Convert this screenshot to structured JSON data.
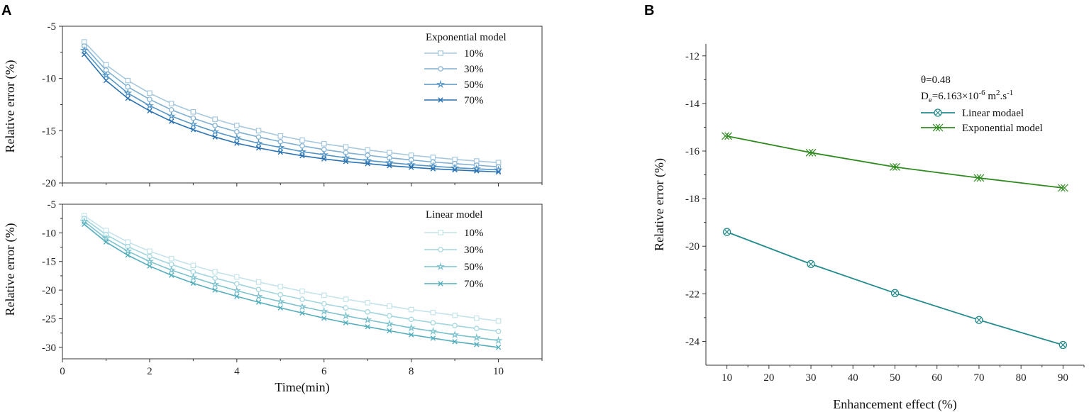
{
  "panel_labels": {
    "a": "A",
    "b": "B"
  },
  "colors": {
    "exp": [
      "#a6c8de",
      "#7fb0d4",
      "#5596c6",
      "#2a72b2"
    ],
    "lin": [
      "#c5e4ea",
      "#a1d5de",
      "#7cc2ce",
      "#55aebd"
    ],
    "b_linear": "#238b8b",
    "b_exp": "#2f8a1f"
  },
  "chart_data": [
    {
      "id": "A-top",
      "type": "line",
      "title": "",
      "xlabel": "",
      "ylabel": "Relative error (%)",
      "xlim": [
        0,
        11
      ],
      "ylim": [
        -20,
        -5
      ],
      "xticks": [
        0,
        2,
        4,
        6,
        8,
        10
      ],
      "yticks": [
        -20,
        -15,
        -10,
        -5
      ],
      "ytick_labels": [
        "-20",
        "-15",
        "-10",
        "-5"
      ],
      "legend_title": "Exponential model",
      "x": [
        0.5,
        1,
        1.5,
        2,
        2.5,
        3,
        3.5,
        4,
        4.5,
        5,
        5.5,
        6,
        6.5,
        7,
        7.5,
        8,
        8.5,
        9,
        9.5,
        10
      ],
      "series": [
        {
          "name": "10%",
          "marker": "square",
          "values": [
            -6.5,
            -8.7,
            -10.2,
            -11.4,
            -12.4,
            -13.2,
            -13.9,
            -14.5,
            -15.0,
            -15.5,
            -15.9,
            -16.25,
            -16.55,
            -16.85,
            -17.1,
            -17.35,
            -17.55,
            -17.75,
            -17.9,
            -18.05
          ]
        },
        {
          "name": "30%",
          "marker": "circle",
          "values": [
            -6.9,
            -9.2,
            -10.8,
            -12.0,
            -13.0,
            -13.8,
            -14.5,
            -15.1,
            -15.6,
            -16.05,
            -16.45,
            -16.8,
            -17.1,
            -17.35,
            -17.6,
            -17.8,
            -18.0,
            -18.15,
            -18.3,
            -18.45
          ]
        },
        {
          "name": "50%",
          "marker": "star",
          "values": [
            -7.3,
            -9.7,
            -11.4,
            -12.6,
            -13.6,
            -14.4,
            -15.1,
            -15.7,
            -16.2,
            -16.6,
            -17.0,
            -17.3,
            -17.6,
            -17.85,
            -18.05,
            -18.25,
            -18.4,
            -18.55,
            -18.65,
            -18.75
          ]
        },
        {
          "name": "70%",
          "marker": "x",
          "values": [
            -7.7,
            -10.2,
            -11.9,
            -13.1,
            -14.1,
            -14.9,
            -15.6,
            -16.2,
            -16.65,
            -17.05,
            -17.4,
            -17.7,
            -17.95,
            -18.15,
            -18.35,
            -18.5,
            -18.65,
            -18.75,
            -18.85,
            -18.95
          ]
        }
      ]
    },
    {
      "id": "A-bottom",
      "type": "line",
      "title": "",
      "xlabel": "Time(min)",
      "ylabel": "Relative error (%)",
      "xlim": [
        0,
        11
      ],
      "ylim": [
        -32,
        -5
      ],
      "xticks": [
        0,
        2,
        4,
        6,
        8,
        10
      ],
      "xtick_labels": [
        "0",
        "2",
        "4",
        "6",
        "8",
        "10"
      ],
      "yticks": [
        -30,
        -25,
        -20,
        -15,
        -10,
        -5
      ],
      "ytick_labels": [
        "-30",
        "-25",
        "-20",
        "-15",
        "-10",
        "-5"
      ],
      "legend_title": "Linear model",
      "x": [
        0.5,
        1,
        1.5,
        2,
        2.5,
        3,
        3.5,
        4,
        4.5,
        5,
        5.5,
        6,
        6.5,
        7,
        7.5,
        8,
        8.5,
        9,
        9.5,
        10
      ],
      "series": [
        {
          "name": "10%",
          "marker": "square",
          "values": [
            -7.0,
            -9.6,
            -11.6,
            -13.2,
            -14.5,
            -15.7,
            -16.8,
            -17.7,
            -18.6,
            -19.4,
            -20.2,
            -20.9,
            -21.6,
            -22.2,
            -22.8,
            -23.4,
            -23.9,
            -24.4,
            -24.9,
            -25.4
          ]
        },
        {
          "name": "30%",
          "marker": "circle",
          "values": [
            -7.5,
            -10.3,
            -12.4,
            -14.1,
            -15.5,
            -16.8,
            -17.9,
            -18.9,
            -19.9,
            -20.8,
            -21.6,
            -22.4,
            -23.1,
            -23.8,
            -24.5,
            -25.1,
            -25.7,
            -26.2,
            -26.7,
            -27.2
          ]
        },
        {
          "name": "50%",
          "marker": "star",
          "values": [
            -8.0,
            -11.0,
            -13.2,
            -15.0,
            -16.5,
            -17.8,
            -19.0,
            -20.1,
            -21.1,
            -22.0,
            -22.9,
            -23.7,
            -24.5,
            -25.2,
            -25.9,
            -26.6,
            -27.2,
            -27.8,
            -28.3,
            -28.8
          ]
        },
        {
          "name": "70%",
          "marker": "x",
          "values": [
            -8.5,
            -11.6,
            -13.9,
            -15.8,
            -17.4,
            -18.8,
            -20.0,
            -21.1,
            -22.1,
            -23.1,
            -24.0,
            -24.9,
            -25.7,
            -26.4,
            -27.1,
            -27.8,
            -28.4,
            -29.0,
            -29.5,
            -30.0
          ]
        }
      ]
    },
    {
      "id": "B",
      "type": "line",
      "title": "",
      "xlabel": "Enhancement effect (%)",
      "ylabel": "Relative error (%)",
      "xlim": [
        5,
        95
      ],
      "ylim": [
        -25,
        -11.5
      ],
      "xticks": [
        10,
        20,
        30,
        40,
        50,
        60,
        70,
        80,
        90
      ],
      "xtick_labels": [
        "10",
        "20",
        "30",
        "40",
        "50",
        "60",
        "70",
        "80",
        "90"
      ],
      "yticks": [
        -24,
        -22,
        -20,
        -18,
        -16,
        -14,
        -12
      ],
      "ytick_labels": [
        "-24",
        "-22",
        "-20",
        "-18",
        "-16",
        "-14",
        "-12"
      ],
      "annotation_theta": "θ=0.48",
      "annotation_de": {
        "main": "D",
        "sub": "e",
        "eq": "=6.163×10",
        "exp": "-6",
        "unit": " m",
        "unit_exp": "2",
        "unit_tail": ".s",
        "unit_tail_exp": "-1"
      },
      "x": [
        10,
        30,
        50,
        70,
        90
      ],
      "series": [
        {
          "name": "Linear modael",
          "marker": "circle-x",
          "values": [
            -19.4,
            -20.75,
            -21.97,
            -23.1,
            -24.15
          ]
        },
        {
          "name": "Exponential model",
          "marker": "double-x",
          "values": [
            -15.37,
            -16.07,
            -16.67,
            -17.13,
            -17.55
          ]
        }
      ]
    }
  ]
}
